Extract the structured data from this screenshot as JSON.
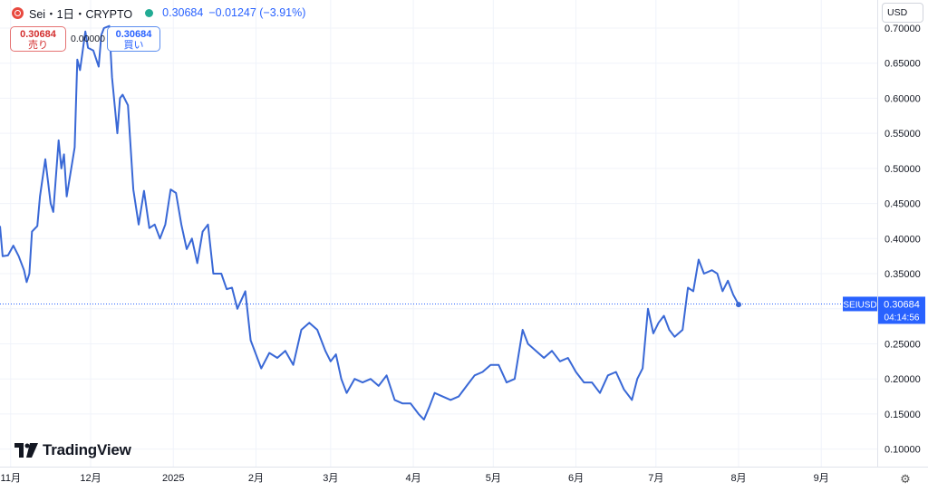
{
  "header": {
    "symbol_title": "Sei・1日・CRYPTO",
    "last": "0.30684",
    "change": "−0.01247 (−3.91%)"
  },
  "trade": {
    "sell_price": "0.30684",
    "sell_label": "売り",
    "spread": "0.00000",
    "buy_price": "0.30684",
    "buy_label": "買い"
  },
  "currency_button": "USD",
  "brand": "TradingView",
  "colors": {
    "line": "#3968d6",
    "accent": "#2962ff",
    "sell": "#d32f2f",
    "grid": "#f0f3fa"
  },
  "chart_data": {
    "type": "line",
    "title": "Sei・1日・CRYPTO",
    "xlabel": "",
    "ylabel": "",
    "ylim": [
      0.075,
      0.74
    ],
    "xlim": [
      "2024-10-28",
      "2025-09-22"
    ],
    "y_ticks": [
      "0.70000",
      "0.65000",
      "0.60000",
      "0.55000",
      "0.50000",
      "0.45000",
      "0.40000",
      "0.35000",
      "0.30000",
      "0.25000",
      "0.20000",
      "0.15000",
      "0.10000"
    ],
    "x_ticks": [
      {
        "date": "2024-11-01",
        "label": "11月"
      },
      {
        "date": "2024-12-01",
        "label": "12月"
      },
      {
        "date": "2025-01-01",
        "label": "2025"
      },
      {
        "date": "2025-02-01",
        "label": "2月"
      },
      {
        "date": "2025-03-01",
        "label": "3月"
      },
      {
        "date": "2025-04-01",
        "label": "4月"
      },
      {
        "date": "2025-05-01",
        "label": "5月"
      },
      {
        "date": "2025-06-01",
        "label": "6月"
      },
      {
        "date": "2025-07-01",
        "label": "7月"
      },
      {
        "date": "2025-08-01",
        "label": "8月"
      },
      {
        "date": "2025-09-01",
        "label": "9月"
      }
    ],
    "grid": true,
    "last_price": {
      "symbol": "SEIUSD",
      "value": 0.30684,
      "price_label": "0.30684",
      "countdown": "04:14:56"
    },
    "series": [
      {
        "name": "SEIUSD",
        "points": [
          [
            "2024-10-28",
            0.418
          ],
          [
            "2024-10-29",
            0.375
          ],
          [
            "2024-10-31",
            0.376
          ],
          [
            "2024-11-02",
            0.39
          ],
          [
            "2024-11-04",
            0.375
          ],
          [
            "2024-11-06",
            0.355
          ],
          [
            "2024-11-07",
            0.338
          ],
          [
            "2024-11-08",
            0.35
          ],
          [
            "2024-11-09",
            0.41
          ],
          [
            "2024-11-11",
            0.418
          ],
          [
            "2024-11-12",
            0.46
          ],
          [
            "2024-11-14",
            0.513
          ],
          [
            "2024-11-16",
            0.45
          ],
          [
            "2024-11-17",
            0.438
          ],
          [
            "2024-11-19",
            0.54
          ],
          [
            "2024-11-20",
            0.5
          ],
          [
            "2024-11-21",
            0.52
          ],
          [
            "2024-11-22",
            0.46
          ],
          [
            "2024-11-25",
            0.53
          ],
          [
            "2024-11-26",
            0.655
          ],
          [
            "2024-11-27",
            0.64
          ],
          [
            "2024-11-29",
            0.695
          ],
          [
            "2024-11-30",
            0.672
          ],
          [
            "2024-12-02",
            0.668
          ],
          [
            "2024-12-04",
            0.645
          ],
          [
            "2024-12-05",
            0.69
          ],
          [
            "2024-12-06",
            0.7
          ],
          [
            "2024-12-08",
            0.703
          ],
          [
            "2024-12-09",
            0.63
          ],
          [
            "2024-12-11",
            0.55
          ],
          [
            "2024-12-12",
            0.6
          ],
          [
            "2024-12-13",
            0.605
          ],
          [
            "2024-12-15",
            0.59
          ],
          [
            "2024-12-17",
            0.47
          ],
          [
            "2024-12-19",
            0.42
          ],
          [
            "2024-12-21",
            0.468
          ],
          [
            "2024-12-23",
            0.415
          ],
          [
            "2024-12-25",
            0.42
          ],
          [
            "2024-12-27",
            0.4
          ],
          [
            "2024-12-29",
            0.42
          ],
          [
            "2024-12-31",
            0.47
          ],
          [
            "2025-01-02",
            0.465
          ],
          [
            "2025-01-04",
            0.42
          ],
          [
            "2025-01-06",
            0.385
          ],
          [
            "2025-01-08",
            0.4
          ],
          [
            "2025-01-10",
            0.365
          ],
          [
            "2025-01-12",
            0.41
          ],
          [
            "2025-01-14",
            0.42
          ],
          [
            "2025-01-16",
            0.35
          ],
          [
            "2025-01-19",
            0.35
          ],
          [
            "2025-01-21",
            0.328
          ],
          [
            "2025-01-23",
            0.33
          ],
          [
            "2025-01-25",
            0.3
          ],
          [
            "2025-01-28",
            0.325
          ],
          [
            "2025-01-30",
            0.255
          ],
          [
            "2025-02-03",
            0.215
          ],
          [
            "2025-02-06",
            0.237
          ],
          [
            "2025-02-09",
            0.23
          ],
          [
            "2025-02-12",
            0.24
          ],
          [
            "2025-02-15",
            0.22
          ],
          [
            "2025-02-18",
            0.27
          ],
          [
            "2025-02-21",
            0.28
          ],
          [
            "2025-02-24",
            0.27
          ],
          [
            "2025-02-27",
            0.24
          ],
          [
            "2025-03-01",
            0.225
          ],
          [
            "2025-03-03",
            0.235
          ],
          [
            "2025-03-05",
            0.2
          ],
          [
            "2025-03-07",
            0.18
          ],
          [
            "2025-03-10",
            0.2
          ],
          [
            "2025-03-13",
            0.195
          ],
          [
            "2025-03-16",
            0.2
          ],
          [
            "2025-03-19",
            0.19
          ],
          [
            "2025-03-22",
            0.205
          ],
          [
            "2025-03-25",
            0.17
          ],
          [
            "2025-03-28",
            0.165
          ],
          [
            "2025-03-31",
            0.165
          ],
          [
            "2025-04-03",
            0.15
          ],
          [
            "2025-04-05",
            0.142
          ],
          [
            "2025-04-07",
            0.16
          ],
          [
            "2025-04-09",
            0.18
          ],
          [
            "2025-04-12",
            0.175
          ],
          [
            "2025-04-15",
            0.17
          ],
          [
            "2025-04-18",
            0.175
          ],
          [
            "2025-04-21",
            0.19
          ],
          [
            "2025-04-24",
            0.205
          ],
          [
            "2025-04-27",
            0.21
          ],
          [
            "2025-04-30",
            0.22
          ],
          [
            "2025-05-03",
            0.22
          ],
          [
            "2025-05-06",
            0.195
          ],
          [
            "2025-05-09",
            0.2
          ],
          [
            "2025-05-12",
            0.27
          ],
          [
            "2025-05-14",
            0.25
          ],
          [
            "2025-05-17",
            0.24
          ],
          [
            "2025-05-20",
            0.23
          ],
          [
            "2025-05-23",
            0.24
          ],
          [
            "2025-05-26",
            0.225
          ],
          [
            "2025-05-29",
            0.23
          ],
          [
            "2025-06-01",
            0.21
          ],
          [
            "2025-06-04",
            0.195
          ],
          [
            "2025-06-07",
            0.195
          ],
          [
            "2025-06-10",
            0.18
          ],
          [
            "2025-06-13",
            0.205
          ],
          [
            "2025-06-16",
            0.21
          ],
          [
            "2025-06-19",
            0.185
          ],
          [
            "2025-06-22",
            0.17
          ],
          [
            "2025-06-24",
            0.2
          ],
          [
            "2025-06-26",
            0.215
          ],
          [
            "2025-06-28",
            0.3
          ],
          [
            "2025-06-30",
            0.265
          ],
          [
            "2025-07-02",
            0.28
          ],
          [
            "2025-07-04",
            0.29
          ],
          [
            "2025-07-06",
            0.27
          ],
          [
            "2025-07-08",
            0.26
          ],
          [
            "2025-07-11",
            0.27
          ],
          [
            "2025-07-13",
            0.33
          ],
          [
            "2025-07-15",
            0.325
          ],
          [
            "2025-07-17",
            0.37
          ],
          [
            "2025-07-19",
            0.35
          ],
          [
            "2025-07-22",
            0.355
          ],
          [
            "2025-07-24",
            0.35
          ],
          [
            "2025-07-26",
            0.325
          ],
          [
            "2025-07-28",
            0.34
          ],
          [
            "2025-07-30",
            0.32
          ],
          [
            "2025-08-01",
            0.306
          ]
        ]
      }
    ]
  }
}
